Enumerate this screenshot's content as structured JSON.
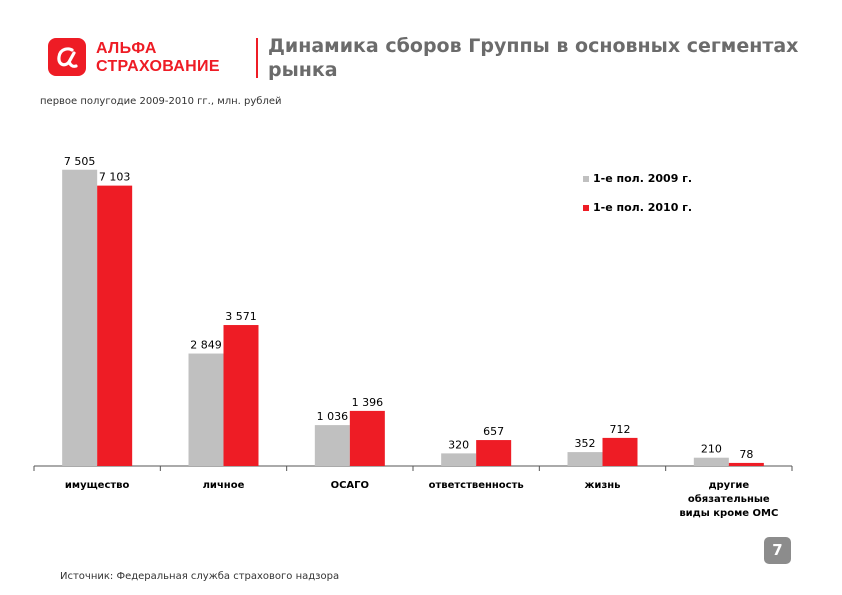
{
  "logo": {
    "line1": "АЛЬФА",
    "line2": "СТРАХОВАНИЕ",
    "mark": "α"
  },
  "header": {
    "title": "Динамика сборов Группы в основных сегментах рынка",
    "subtitle": "первое полугодие 2009-2010 гг., млн. рублей"
  },
  "footer": {
    "source": "Источник: Федеральная служба страхового надзора",
    "page": "7"
  },
  "colors": {
    "series2009": "#c0c0c0",
    "series2010": "#ee1c25",
    "brand": "#ee1c25"
  },
  "chart_data": {
    "type": "bar",
    "title": "Динамика сборов Группы в основных сегментах рынка",
    "xlabel": "",
    "ylabel": "",
    "ylim": [
      0,
      7600
    ],
    "grid": false,
    "legend_position": "top-right",
    "categories": [
      [
        "имущество"
      ],
      [
        "личное"
      ],
      [
        "ОСАГО"
      ],
      [
        "ответственность"
      ],
      [
        "жизнь"
      ],
      [
        "другие",
        "обязательные",
        "виды кроме ОМС"
      ]
    ],
    "series": [
      {
        "name": "1-е пол. 2009 г.",
        "values": [
          7505,
          2849,
          1036,
          320,
          352,
          210
        ],
        "labels": [
          "7 505",
          "2 849",
          "1 036",
          "320",
          "352",
          "210"
        ]
      },
      {
        "name": "1-е пол. 2010 г.",
        "values": [
          7103,
          3571,
          1396,
          657,
          712,
          78
        ],
        "labels": [
          "7 103",
          "3 571",
          "1 396",
          "657",
          "712",
          "78"
        ]
      }
    ]
  }
}
